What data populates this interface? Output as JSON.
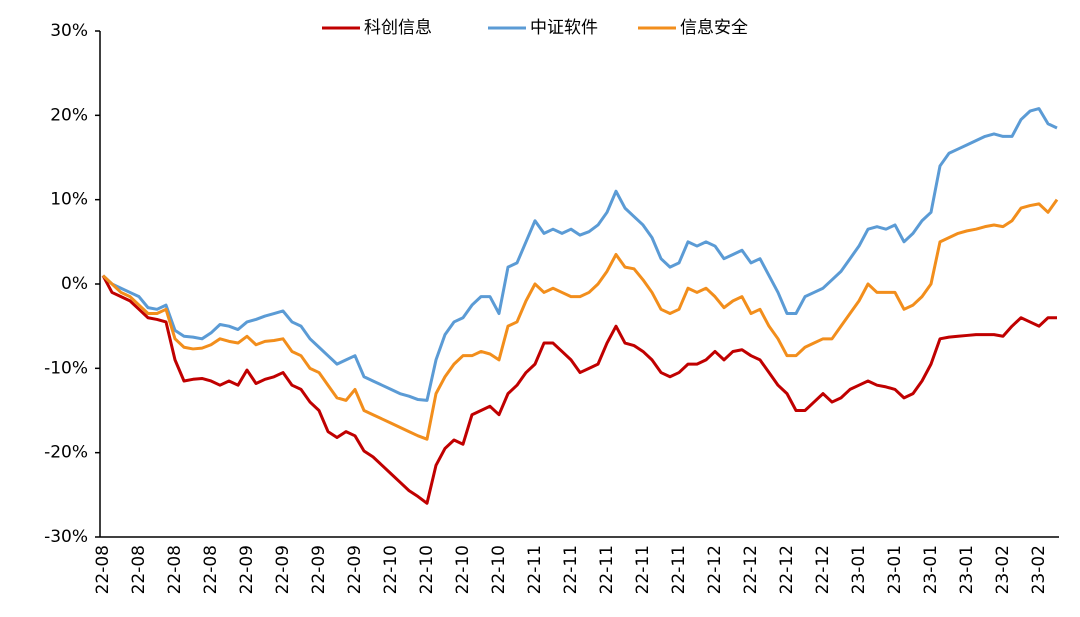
{
  "chart_data": {
    "type": "line",
    "categories": [
      "22-08",
      null,
      null,
      null,
      "22-08",
      null,
      null,
      null,
      "22-08",
      null,
      null,
      null,
      "22-08",
      null,
      null,
      null,
      "22-09",
      null,
      null,
      null,
      "22-09",
      null,
      null,
      null,
      "22-09",
      null,
      null,
      null,
      "22-09",
      null,
      null,
      null,
      "22-10",
      null,
      null,
      null,
      "22-10",
      null,
      null,
      null,
      "22-10",
      null,
      null,
      null,
      "22-10",
      null,
      null,
      null,
      "22-11",
      null,
      null,
      null,
      "22-11",
      null,
      null,
      null,
      "22-11",
      null,
      null,
      null,
      "22-11",
      null,
      null,
      null,
      "22-11",
      null,
      null,
      null,
      "22-12",
      null,
      null,
      null,
      "22-12",
      null,
      null,
      null,
      "22-12",
      null,
      null,
      null,
      "22-12",
      null,
      null,
      null,
      "23-01",
      null,
      null,
      null,
      "23-01",
      null,
      null,
      null,
      "23-01",
      null,
      null,
      null,
      "23-01",
      null,
      null,
      null,
      "23-02",
      null,
      null,
      null,
      "23-02",
      null,
      null
    ],
    "series": [
      {
        "name": "科创信息",
        "color": "#c00000",
        "values": [
          1,
          -1,
          -1.5,
          -2,
          -3,
          -4,
          -4.2,
          -4.5,
          -9,
          -11.5,
          -11.3,
          -11.2,
          -11.5,
          -12,
          -11.5,
          -12,
          -10.2,
          -11.8,
          -11.3,
          -11,
          -10.5,
          -12,
          -12.5,
          -14,
          -15,
          -17.5,
          -18.2,
          -17.5,
          -18,
          -19.8,
          -20.5,
          -21.5,
          -22.5,
          -23.5,
          -24.5,
          -25.2,
          -26,
          -21.5,
          -19.5,
          -18.5,
          -19,
          -15.5,
          -15,
          -14.5,
          -15.5,
          -13,
          -12,
          -10.5,
          -9.5,
          -7,
          -7,
          -8,
          -9,
          -10.5,
          -10,
          -9.5,
          -7,
          -5,
          -7,
          -7.3,
          -8,
          -9,
          -10.5,
          -11,
          -10.5,
          -9.5,
          -9.5,
          -9,
          -8,
          -9,
          -8,
          -7.8,
          -8.5,
          -9,
          -10.5,
          -12,
          -13,
          -15,
          -15,
          -14,
          -13,
          -14,
          -13.5,
          -12.5,
          -12,
          -11.5,
          -12,
          -12.2,
          -12.5,
          -13.5,
          -13,
          -11.5,
          -9.5,
          -6.5,
          -6.3,
          -6.2,
          -6.1,
          -6,
          -6,
          -6,
          -6.2,
          -5,
          -4,
          -4.5,
          -5,
          -4,
          -4
        ]
      },
      {
        "name": "中证软件",
        "color": "#5b9bd5",
        "values": [
          1,
          0,
          -0.5,
          -1,
          -1.5,
          -2.8,
          -3,
          -2.5,
          -5.5,
          -6.2,
          -6.3,
          -6.5,
          -5.8,
          -4.8,
          -5,
          -5.4,
          -4.5,
          -4.2,
          -3.8,
          -3.5,
          -3.2,
          -4.5,
          -5,
          -6.5,
          -7.5,
          -8.5,
          -9.5,
          -9,
          -8.5,
          -11,
          -11.5,
          -12,
          -12.5,
          -13,
          -13.3,
          -13.7,
          -13.8,
          -9,
          -6,
          -4.5,
          -4,
          -2.5,
          -1.5,
          -1.5,
          -3.5,
          2,
          2.5,
          5,
          7.5,
          6,
          6.5,
          6,
          6.5,
          5.8,
          6.2,
          7,
          8.5,
          11,
          9,
          8,
          7,
          5.5,
          3,
          2,
          2.5,
          5,
          4.5,
          5,
          4.5,
          3,
          3.5,
          4,
          2.5,
          3,
          1,
          -1,
          -3.5,
          -3.5,
          -1.5,
          -1,
          -0.5,
          0.5,
          1.5,
          3,
          4.5,
          6.5,
          6.8,
          6.5,
          7,
          5,
          6,
          7.5,
          8.5,
          14,
          15.5,
          16,
          16.5,
          17,
          17.5,
          17.8,
          17.5,
          17.5,
          19.5,
          20.5,
          20.8,
          19,
          18.5
        ]
      },
      {
        "name": "信息安全",
        "color": "#f28e1c",
        "values": [
          1,
          0,
          -1,
          -1.5,
          -2.5,
          -3.5,
          -3.5,
          -3,
          -6.5,
          -7.5,
          -7.7,
          -7.6,
          -7.2,
          -6.5,
          -6.8,
          -7,
          -6.2,
          -7.2,
          -6.8,
          -6.7,
          -6.5,
          -8,
          -8.5,
          -10,
          -10.5,
          -12,
          -13.5,
          -13.8,
          -12.5,
          -15,
          -15.5,
          -16,
          -16.5,
          -17,
          -17.5,
          -18,
          -18.4,
          -13,
          -11,
          -9.5,
          -8.5,
          -8.5,
          -8,
          -8.3,
          -9,
          -5,
          -4.5,
          -2,
          0,
          -1,
          -0.5,
          -1,
          -1.5,
          -1.5,
          -1,
          0,
          1.5,
          3.5,
          2,
          1.8,
          0.5,
          -1,
          -3,
          -3.5,
          -3,
          -0.5,
          -1,
          -0.5,
          -1.5,
          -2.8,
          -2,
          -1.5,
          -3.5,
          -3,
          -5,
          -6.5,
          -8.5,
          -8.5,
          -7.5,
          -7,
          -6.5,
          -6.5,
          -5,
          -3.5,
          -2,
          0,
          -1,
          -1,
          -1,
          -3,
          -2.5,
          -1.5,
          0,
          5,
          5.5,
          6,
          6.3,
          6.5,
          6.8,
          7,
          6.8,
          7.5,
          9,
          9.3,
          9.5,
          8.5,
          10
        ]
      }
    ],
    "ylim": [
      -30,
      30
    ],
    "yticks": [
      {
        "value": -30,
        "label": "-30%"
      },
      {
        "value": -20,
        "label": "-20%"
      },
      {
        "value": -10,
        "label": "-10%"
      },
      {
        "value": 0,
        "label": "0%"
      },
      {
        "value": 10,
        "label": "10%"
      },
      {
        "value": 20,
        "label": "20%"
      },
      {
        "value": 30,
        "label": "30%"
      }
    ],
    "legend": "top"
  }
}
